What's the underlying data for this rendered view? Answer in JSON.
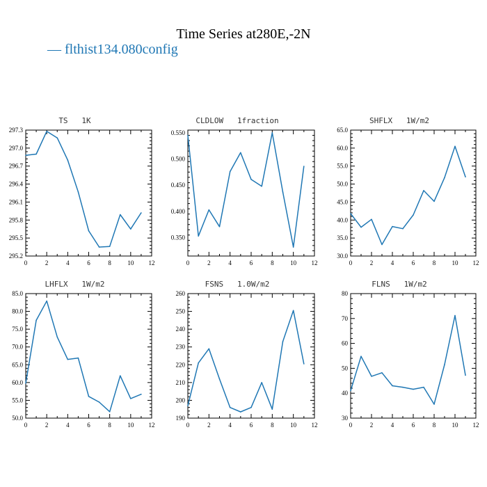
{
  "figure": {
    "title": "Time Series at280E,-2N",
    "legend_text": "— flthist134.080config",
    "series_color": "#1f77b4"
  },
  "chart_data": [
    {
      "type": "line",
      "title": "TS   1K",
      "x": [
        0,
        1,
        2,
        3,
        4,
        5,
        6,
        7,
        8,
        9,
        10,
        11
      ],
      "series": [
        {
          "values": [
            296.88,
            296.9,
            297.28,
            297.17,
            296.8,
            296.27,
            295.62,
            295.35,
            295.36,
            295.89,
            295.65,
            295.92
          ]
        }
      ],
      "xlim": [
        0,
        12
      ],
      "ylim": [
        295.2,
        297.3
      ],
      "xticks": [
        0,
        2,
        4,
        6,
        8,
        10,
        12
      ],
      "xtick_labels": [
        "0",
        "2",
        "4",
        "6",
        "8",
        "10",
        "12"
      ],
      "yticks": [
        295.2,
        295.5,
        295.8,
        296.1,
        296.4,
        296.7,
        297.0,
        297.3
      ],
      "ytick_labels": [
        "295.2",
        "295.5",
        "295.8",
        "296.1",
        "296.4",
        "296.7",
        "297.0",
        "297.3"
      ]
    },
    {
      "type": "line",
      "title": "CLDLOW   1fraction",
      "x": [
        0,
        1,
        2,
        3,
        4,
        5,
        6,
        7,
        8,
        9,
        10,
        11
      ],
      "series": [
        {
          "values": [
            0.545,
            0.353,
            0.403,
            0.371,
            0.476,
            0.512,
            0.461,
            0.448,
            0.55,
            0.437,
            0.332,
            0.486
          ]
        }
      ],
      "xlim": [
        0,
        12
      ],
      "ylim": [
        0.315,
        0.555
      ],
      "xticks": [
        0,
        2,
        4,
        6,
        8,
        10,
        12
      ],
      "xtick_labels": [
        "0",
        "2",
        "4",
        "6",
        "8",
        "10",
        "12"
      ],
      "yticks": [
        0.35,
        0.4,
        0.45,
        0.5,
        0.55
      ],
      "ytick_labels": [
        "0.350",
        "0.400",
        "0.450",
        "0.500",
        "0.550"
      ]
    },
    {
      "type": "line",
      "title": "SHFLX   1W/m2",
      "x": [
        0,
        1,
        2,
        3,
        4,
        5,
        6,
        7,
        8,
        9,
        10,
        11
      ],
      "series": [
        {
          "values": [
            41.8,
            38.0,
            40.2,
            33.2,
            38.2,
            37.6,
            41.4,
            48.2,
            45.2,
            51.8,
            60.5,
            52.0
          ]
        }
      ],
      "xlim": [
        0,
        12
      ],
      "ylim": [
        30.0,
        65.0
      ],
      "xticks": [
        0,
        2,
        4,
        6,
        8,
        10,
        12
      ],
      "xtick_labels": [
        "0",
        "2",
        "4",
        "6",
        "8",
        "10",
        "12"
      ],
      "yticks": [
        30,
        35,
        40,
        45,
        50,
        55,
        60,
        65
      ],
      "ytick_labels": [
        "30.0",
        "35.0",
        "40.0",
        "45.0",
        "50.0",
        "55.0",
        "60.0",
        "65.0"
      ]
    },
    {
      "type": "line",
      "title": "LHFLX   1W/m2",
      "x": [
        0,
        1,
        2,
        3,
        4,
        5,
        6,
        7,
        8,
        9,
        10,
        11
      ],
      "series": [
        {
          "values": [
            59.8,
            77.5,
            82.9,
            72.8,
            66.5,
            66.9,
            56.1,
            54.5,
            51.8,
            61.9,
            55.5,
            56.7
          ]
        }
      ],
      "xlim": [
        0,
        12
      ],
      "ylim": [
        50.0,
        85.0
      ],
      "xticks": [
        0,
        2,
        4,
        6,
        8,
        10,
        12
      ],
      "xtick_labels": [
        "0",
        "2",
        "4",
        "6",
        "8",
        "10",
        "12"
      ],
      "yticks": [
        50,
        55,
        60,
        65,
        70,
        75,
        80,
        85
      ],
      "ytick_labels": [
        "50.0",
        "55.0",
        "60.0",
        "65.0",
        "70.0",
        "75.0",
        "80.0",
        "85.0"
      ]
    },
    {
      "type": "line",
      "title": "FSNS   1.0W/m2",
      "x": [
        0,
        1,
        2,
        3,
        4,
        5,
        6,
        7,
        8,
        9,
        10,
        11
      ],
      "series": [
        {
          "values": [
            197.0,
            221.0,
            229.0,
            212.0,
            196.0,
            193.5,
            196.0,
            210.0,
            195.0,
            233.0,
            250.5,
            220.5
          ]
        }
      ],
      "xlim": [
        0,
        12
      ],
      "ylim": [
        190,
        260
      ],
      "xticks": [
        0,
        2,
        4,
        6,
        8,
        10,
        12
      ],
      "xtick_labels": [
        "0",
        "2",
        "4",
        "6",
        "8",
        "10",
        "12"
      ],
      "yticks": [
        190,
        200,
        210,
        220,
        230,
        240,
        250,
        260
      ],
      "ytick_labels": [
        "190",
        "200",
        "210",
        "220",
        "230",
        "240",
        "250",
        "260"
      ]
    },
    {
      "type": "line",
      "title": "FLNS   1W/m2",
      "x": [
        0,
        1,
        2,
        3,
        4,
        5,
        6,
        7,
        8,
        9,
        10,
        11
      ],
      "series": [
        {
          "values": [
            41.0,
            54.8,
            46.8,
            48.2,
            43.0,
            42.4,
            41.6,
            42.4,
            35.6,
            51.5,
            71.2,
            47.2
          ]
        }
      ],
      "xlim": [
        0,
        12
      ],
      "ylim": [
        30,
        80
      ],
      "xticks": [
        0,
        2,
        4,
        6,
        8,
        10,
        12
      ],
      "xtick_labels": [
        "0",
        "2",
        "4",
        "6",
        "8",
        "10",
        "12"
      ],
      "yticks": [
        30,
        40,
        50,
        60,
        70,
        80
      ],
      "ytick_labels": [
        "30",
        "40",
        "50",
        "60",
        "70",
        "80"
      ]
    }
  ]
}
